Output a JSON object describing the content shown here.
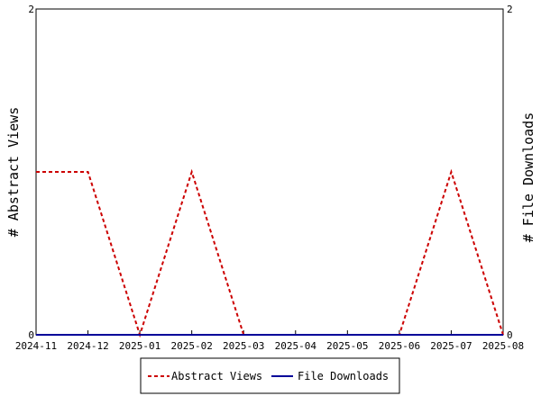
{
  "chart_data": {
    "type": "line",
    "title": "",
    "x_ticks": [
      "2024-11",
      "2024-12",
      "2025-01",
      "2025-02",
      "2025-03",
      "2025-04",
      "2025-05",
      "2025-06",
      "2025-07",
      "2025-08"
    ],
    "ylabel_left": "# Abstract Views",
    "ylabel_right": "# File Downloads",
    "ylim_left": [
      0,
      2
    ],
    "ylim_right": [
      0,
      2
    ],
    "y_ticks_left": [
      "0",
      "2"
    ],
    "y_ticks_right": [
      "0",
      "2"
    ],
    "grid": false,
    "legend_position": "bottom",
    "series": [
      {
        "name": "Abstract Views",
        "color": "#cc0000",
        "style": "dashed",
        "axis": "left",
        "x": [
          "2024-11",
          "2024-12",
          "2025-01",
          "2025-02",
          "2025-03",
          "2025-04",
          "2025-05",
          "2025-06",
          "2025-07",
          "2025-08"
        ],
        "values": [
          1,
          1,
          0,
          1,
          0,
          0,
          0,
          0,
          1,
          0
        ]
      },
      {
        "name": "File Downloads",
        "color": "#000099",
        "style": "solid",
        "axis": "right",
        "x": [
          "2024-11",
          "2024-12",
          "2025-01",
          "2025-02",
          "2025-03",
          "2025-04",
          "2025-05",
          "2025-06",
          "2025-07",
          "2025-08"
        ],
        "values": [
          0,
          0,
          0,
          0,
          0,
          0,
          0,
          0,
          0,
          0
        ]
      }
    ]
  }
}
